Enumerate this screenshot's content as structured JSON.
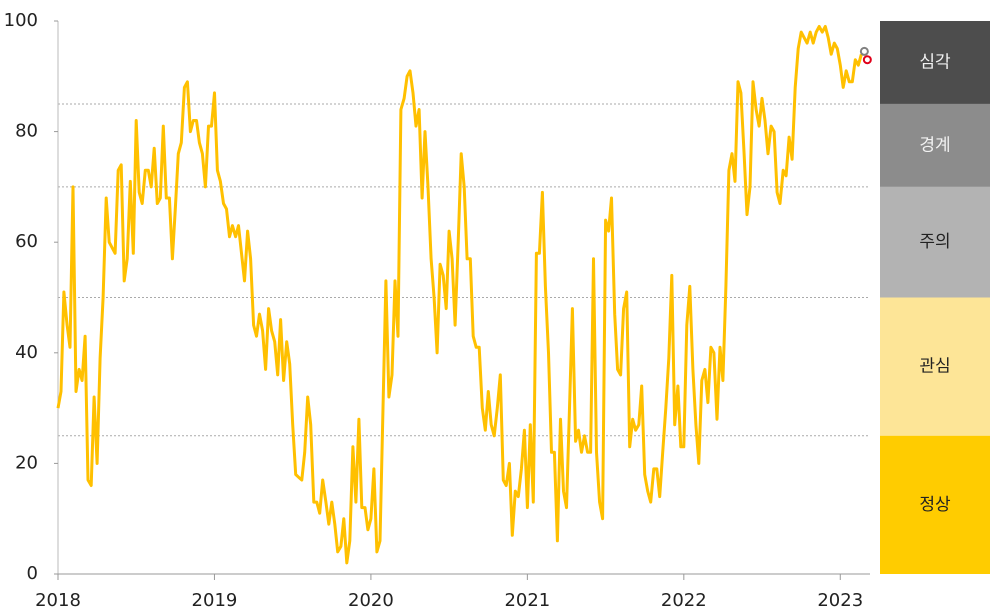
{
  "chart_data": {
    "type": "line",
    "x": [
      2018.0,
      2018.019,
      2018.038,
      2018.058,
      2018.077,
      2018.096,
      2018.115,
      2018.135,
      2018.154,
      2018.173,
      2018.192,
      2018.212,
      2018.231,
      2018.25,
      2018.269,
      2018.288,
      2018.308,
      2018.327,
      2018.346,
      2018.365,
      2018.385,
      2018.404,
      2018.423,
      2018.442,
      2018.462,
      2018.481,
      2018.5,
      2018.519,
      2018.538,
      2018.558,
      2018.577,
      2018.596,
      2018.615,
      2018.635,
      2018.654,
      2018.673,
      2018.692,
      2018.712,
      2018.731,
      2018.75,
      2018.769,
      2018.788,
      2018.808,
      2018.827,
      2018.846,
      2018.865,
      2018.885,
      2018.904,
      2018.923,
      2018.942,
      2018.962,
      2018.981,
      2019.0,
      2019.019,
      2019.038,
      2019.058,
      2019.077,
      2019.096,
      2019.115,
      2019.135,
      2019.154,
      2019.173,
      2019.192,
      2019.212,
      2019.231,
      2019.25,
      2019.269,
      2019.288,
      2019.308,
      2019.327,
      2019.346,
      2019.365,
      2019.385,
      2019.404,
      2019.423,
      2019.442,
      2019.462,
      2019.481,
      2019.5,
      2019.519,
      2019.538,
      2019.558,
      2019.577,
      2019.596,
      2019.615,
      2019.635,
      2019.654,
      2019.673,
      2019.692,
      2019.712,
      2019.731,
      2019.75,
      2019.769,
      2019.788,
      2019.808,
      2019.827,
      2019.846,
      2019.865,
      2019.885,
      2019.904,
      2019.923,
      2019.942,
      2019.962,
      2019.981,
      2020.0,
      2020.019,
      2020.038,
      2020.058,
      2020.077,
      2020.096,
      2020.115,
      2020.135,
      2020.154,
      2020.173,
      2020.192,
      2020.212,
      2020.231,
      2020.25,
      2020.269,
      2020.288,
      2020.308,
      2020.327,
      2020.346,
      2020.365,
      2020.385,
      2020.404,
      2020.423,
      2020.442,
      2020.462,
      2020.481,
      2020.5,
      2020.519,
      2020.538,
      2020.558,
      2020.577,
      2020.596,
      2020.615,
      2020.635,
      2020.654,
      2020.673,
      2020.692,
      2020.712,
      2020.731,
      2020.75,
      2020.769,
      2020.788,
      2020.808,
      2020.827,
      2020.846,
      2020.865,
      2020.885,
      2020.904,
      2020.923,
      2020.942,
      2020.962,
      2020.981,
      2021.0,
      2021.019,
      2021.038,
      2021.058,
      2021.077,
      2021.096,
      2021.115,
      2021.135,
      2021.154,
      2021.173,
      2021.192,
      2021.212,
      2021.231,
      2021.25,
      2021.269,
      2021.288,
      2021.308,
      2021.327,
      2021.346,
      2021.365,
      2021.385,
      2021.404,
      2021.423,
      2021.442,
      2021.462,
      2021.481,
      2021.5,
      2021.519,
      2021.538,
      2021.558,
      2021.577,
      2021.596,
      2021.615,
      2021.635,
      2021.654,
      2021.673,
      2021.692,
      2021.712,
      2021.731,
      2021.75,
      2021.769,
      2021.788,
      2021.808,
      2021.827,
      2021.846,
      2021.865,
      2021.885,
      2021.904,
      2021.923,
      2021.942,
      2021.962,
      2021.981,
      2022.0,
      2022.019,
      2022.038,
      2022.058,
      2022.077,
      2022.096,
      2022.115,
      2022.135,
      2022.154,
      2022.173,
      2022.192,
      2022.212,
      2022.231,
      2022.25,
      2022.269,
      2022.288,
      2022.308,
      2022.327,
      2022.346,
      2022.365,
      2022.385,
      2022.404,
      2022.423,
      2022.442,
      2022.462,
      2022.481,
      2022.5,
      2022.519,
      2022.538,
      2022.558,
      2022.577,
      2022.596,
      2022.615,
      2022.635,
      2022.654,
      2022.673,
      2022.692,
      2022.712,
      2022.731,
      2022.75,
      2022.769,
      2022.788,
      2022.808,
      2022.827,
      2022.846,
      2022.865,
      2022.885,
      2022.904,
      2022.923,
      2022.942,
      2022.962,
      2022.981,
      2023.0,
      2023.019,
      2023.038,
      2023.058,
      2023.077,
      2023.096,
      2023.115,
      2023.135
    ],
    "series": [
      {
        "color": "#ffc000",
        "values": [
          30,
          33,
          51,
          45,
          41,
          70,
          33,
          37,
          35,
          43,
          17,
          16,
          32,
          20,
          39,
          50,
          68,
          60,
          59,
          58,
          73,
          74,
          53,
          57,
          71,
          58,
          82,
          69,
          67,
          73,
          73,
          70,
          77,
          67,
          68,
          81,
          68,
          68,
          57,
          66,
          76,
          78,
          88,
          89,
          80,
          82,
          82,
          78,
          76,
          70,
          81,
          81,
          87,
          73,
          71,
          67,
          66,
          61,
          63,
          61,
          63,
          58,
          53,
          62,
          57,
          45,
          43,
          47,
          44,
          37,
          48,
          44,
          42,
          36,
          46,
          35,
          42,
          38,
          27,
          18,
          17.5,
          17,
          22,
          32,
          27,
          13,
          13,
          11,
          17,
          13,
          9,
          13,
          9,
          4,
          5,
          10,
          2,
          6,
          23,
          13,
          28,
          12,
          12,
          8,
          10,
          19,
          4,
          6,
          30,
          53,
          32,
          36,
          53,
          43,
          84,
          86,
          90,
          91,
          87,
          81,
          84,
          68,
          80,
          70,
          57,
          50,
          40,
          56,
          54,
          48,
          62,
          57,
          45,
          60,
          76,
          70,
          57,
          57,
          43,
          41,
          41,
          30,
          26,
          33,
          27,
          25,
          30,
          36,
          17,
          16,
          20,
          7,
          15,
          14,
          19,
          26,
          12,
          27,
          13,
          58,
          58,
          69,
          52,
          40,
          22,
          22,
          6,
          28,
          15,
          12,
          30,
          48,
          24,
          26,
          22,
          25,
          22,
          22,
          57,
          22,
          13,
          10,
          64,
          62,
          68,
          47,
          37,
          36,
          48,
          51,
          23,
          28,
          26,
          27,
          34,
          18,
          15,
          13,
          19,
          19,
          14,
          22,
          30,
          39,
          54,
          27,
          34,
          23,
          23,
          45,
          52,
          37,
          27,
          20,
          35,
          37,
          31,
          41,
          40,
          28,
          41,
          35,
          52,
          73,
          76,
          71,
          89,
          87,
          76,
          65,
          70,
          89,
          84,
          81,
          86,
          82,
          76,
          81,
          80,
          69,
          67,
          73,
          72,
          79,
          75,
          88,
          95,
          98,
          97,
          96,
          98,
          96,
          98,
          99,
          98,
          99,
          97,
          94,
          96,
          95,
          92,
          88,
          91,
          89,
          89,
          93,
          92,
          94
        ]
      }
    ],
    "highlight_points": [
      {
        "x": 2023.154,
        "y": 94.5,
        "color": "#808080"
      },
      {
        "x": 2023.173,
        "y": 93,
        "color": "#e0001a"
      }
    ],
    "bands": [
      {
        "label": "심각",
        "from": 85,
        "to": 100,
        "color": "#4d4d4d"
      },
      {
        "label": "경계",
        "from": 70,
        "to": 85,
        "color": "#8c8c8c"
      },
      {
        "label": "주의",
        "from": 50,
        "to": 70,
        "color": "#b3b3b3"
      },
      {
        "label": "관심",
        "from": 25,
        "to": 50,
        "color": "#fde597"
      },
      {
        "label": "정상",
        "from": 0,
        "to": 25,
        "color": "#ffcc00"
      }
    ],
    "xlim": [
      2018,
      2023.19
    ],
    "xticks": [
      2018,
      2019,
      2020,
      2021,
      2022,
      2023
    ],
    "ylim": [
      0,
      100
    ],
    "yticks": [
      0,
      20,
      40,
      60,
      80,
      100
    ]
  }
}
